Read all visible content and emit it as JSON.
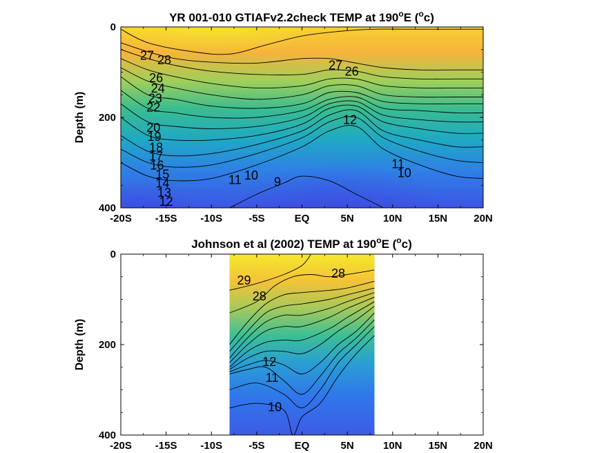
{
  "chart_data": [
    {
      "type": "heatmap",
      "title_prefix": "YR 001-010 GTIAFv2.2check TEMP at 190",
      "title_sup": "o",
      "title_mid": "E (",
      "title_sup2": "o",
      "title_suffix": "c)",
      "ylabel": "Depth (m)",
      "xlim": [
        -20,
        20
      ],
      "ylim": [
        0,
        400
      ],
      "y_reversed": true,
      "xticks": [
        -20,
        -15,
        -10,
        -5,
        0,
        5,
        10,
        15,
        20
      ],
      "xtick_labels": [
        "-20S",
        "-15S",
        "-10S",
        "-5S",
        "EQ",
        "5N",
        "10N",
        "15N",
        "20N"
      ],
      "yticks": [
        0,
        200,
        400
      ],
      "ytick_labels": [
        "0",
        "200",
        "400"
      ],
      "data_xrange": [
        -20,
        20
      ],
      "contours": [
        {
          "level": 28,
          "x": [
            -20,
            -17,
            -12,
            -8,
            -4,
            0,
            4,
            8,
            12,
            16,
            20
          ],
          "y": [
            5,
            35,
            55,
            60,
            40,
            20,
            10,
            5,
            5,
            5,
            5
          ]
        },
        {
          "level": 27,
          "x": [
            -20,
            -17,
            -14,
            -10,
            -5,
            0,
            3,
            6,
            9,
            13,
            17,
            20
          ],
          "y": [
            35,
            55,
            70,
            78,
            80,
            70,
            70,
            80,
            90,
            95,
            95,
            95
          ]
        },
        {
          "level": 26,
          "x": [
            -20,
            -17,
            -14,
            -10,
            -5,
            0,
            3,
            6,
            9,
            13,
            17,
            20
          ],
          "y": [
            50,
            70,
            85,
            98,
            105,
            105,
            95,
            98,
            110,
            115,
            115,
            115
          ]
        },
        {
          "level": 24,
          "x": [
            -20,
            -17,
            -14,
            -10,
            -5,
            0,
            3,
            6,
            9,
            13,
            17,
            20
          ],
          "y": [
            70,
            95,
            110,
            125,
            135,
            130,
            115,
            115,
            130,
            135,
            135,
            135
          ]
        },
        {
          "level": 22,
          "x": [
            -20,
            -17,
            -14,
            -10,
            -5,
            0,
            3,
            6,
            9,
            13,
            17,
            20
          ],
          "y": [
            90,
            120,
            135,
            150,
            160,
            150,
            130,
            130,
            150,
            155,
            155,
            155
          ]
        },
        {
          "level": 20,
          "x": [
            -20,
            -17,
            -14,
            -10,
            -5,
            0,
            3,
            6,
            9,
            13,
            17,
            20
          ],
          "y": [
            110,
            150,
            160,
            175,
            180,
            170,
            145,
            145,
            165,
            170,
            170,
            170
          ]
        },
        {
          "level": 18,
          "x": [
            -20,
            -17,
            -14,
            -10,
            -5,
            0,
            3,
            6,
            9,
            13,
            17,
            20
          ],
          "y": [
            140,
            180,
            190,
            200,
            200,
            185,
            160,
            155,
            180,
            185,
            190,
            190
          ]
        },
        {
          "level": 16,
          "x": [
            -20,
            -17,
            -14,
            -10,
            -5,
            0,
            3,
            6,
            9,
            13,
            17,
            20
          ],
          "y": [
            170,
            210,
            220,
            225,
            220,
            200,
            170,
            165,
            195,
            205,
            210,
            210
          ]
        },
        {
          "level": 14,
          "x": [
            -20,
            -17,
            -14,
            -10,
            -5,
            0,
            3,
            6,
            9,
            13,
            17,
            20
          ],
          "y": [
            200,
            240,
            250,
            250,
            240,
            215,
            180,
            175,
            210,
            225,
            235,
            235
          ]
        },
        {
          "level": 12,
          "x": [
            -20,
            -17,
            -14,
            -10,
            -5,
            0,
            3,
            6,
            9,
            13,
            17,
            20
          ],
          "y": [
            240,
            275,
            285,
            280,
            260,
            230,
            195,
            185,
            230,
            250,
            265,
            265
          ]
        },
        {
          "level": 11,
          "x": [
            -20,
            -17,
            -14,
            -10,
            -5,
            0,
            3,
            6,
            9,
            13,
            17,
            20
          ],
          "y": [
            270,
            300,
            310,
            305,
            280,
            245,
            210,
            200,
            245,
            275,
            295,
            300
          ]
        },
        {
          "level": 10,
          "x": [
            -20,
            -17,
            -14,
            -10,
            -5,
            0,
            3,
            6,
            9,
            13,
            17,
            20
          ],
          "y": [
            300,
            330,
            340,
            335,
            305,
            265,
            230,
            220,
            270,
            305,
            330,
            335
          ]
        },
        {
          "level": 9,
          "x": [
            -8,
            -5,
            -2,
            0,
            3,
            6,
            9
          ],
          "y": [
            400,
            370,
            345,
            330,
            340,
            370,
            400
          ]
        }
      ],
      "contour_labels": [
        {
          "text": "28",
          "x": -15.2,
          "y": 75
        },
        {
          "text": "27",
          "x": -17.1,
          "y": 65
        },
        {
          "text": "26",
          "x": -16.1,
          "y": 115
        },
        {
          "text": "24",
          "x": -15.9,
          "y": 138
        },
        {
          "text": "23",
          "x": -16.2,
          "y": 160
        },
        {
          "text": "22",
          "x": -16.4,
          "y": 180
        },
        {
          "text": "20",
          "x": -16.4,
          "y": 225
        },
        {
          "text": "19",
          "x": -16.3,
          "y": 245
        },
        {
          "text": "18",
          "x": -16.1,
          "y": 268
        },
        {
          "text": "17",
          "x": -16.1,
          "y": 288
        },
        {
          "text": "16",
          "x": -16.0,
          "y": 308
        },
        {
          "text": "15",
          "x": -15.4,
          "y": 328
        },
        {
          "text": "14",
          "x": -15.4,
          "y": 348
        },
        {
          "text": "13",
          "x": -15.2,
          "y": 368
        },
        {
          "text": "12",
          "x": -15.0,
          "y": 388
        },
        {
          "text": "11",
          "x": -7.4,
          "y": 340
        },
        {
          "text": "10",
          "x": -5.6,
          "y": 330
        },
        {
          "text": "9",
          "x": -2.7,
          "y": 345
        },
        {
          "text": "27",
          "x": 3.7,
          "y": 87
        },
        {
          "text": "26",
          "x": 5.5,
          "y": 100
        },
        {
          "text": "12",
          "x": 5.3,
          "y": 207
        },
        {
          "text": "11",
          "x": 10.6,
          "y": 305
        },
        {
          "text": "10",
          "x": 11.3,
          "y": 325
        }
      ]
    },
    {
      "type": "heatmap",
      "title_prefix": "Johnson et al (2002) TEMP at 190",
      "title_sup": "o",
      "title_mid": "E (",
      "title_sup2": "o",
      "title_suffix": "c)",
      "ylabel": "Depth (m)",
      "xlim": [
        -20,
        20
      ],
      "ylim": [
        0,
        400
      ],
      "y_reversed": true,
      "xticks": [
        -20,
        -15,
        -10,
        -5,
        0,
        5,
        10,
        15,
        20
      ],
      "xtick_labels": [
        "-20S",
        "-15S",
        "-10S",
        "-5S",
        "EQ",
        "5N",
        "10N",
        "15N",
        "20N"
      ],
      "yticks": [
        0,
        200,
        400
      ],
      "ytick_labels": [
        "0",
        "200",
        "400"
      ],
      "data_xrange": [
        -8,
        8
      ],
      "contours": [
        {
          "level": 29,
          "x": [
            -8,
            -5,
            -2,
            0,
            1
          ],
          "y": [
            80,
            65,
            45,
            25,
            0
          ]
        },
        {
          "level": 28,
          "x": [
            -8,
            -5,
            -3,
            -1,
            1,
            3,
            5,
            8
          ],
          "y": [
            130,
            105,
            70,
            50,
            45,
            50,
            45,
            35
          ]
        },
        {
          "level": 26,
          "x": [
            -8,
            -6,
            -4,
            -2,
            0,
            3,
            5,
            8
          ],
          "y": [
            200,
            150,
            110,
            90,
            85,
            80,
            75,
            60
          ]
        },
        {
          "level": 24,
          "x": [
            -8,
            -6,
            -4,
            -2,
            0,
            3,
            5,
            8
          ],
          "y": [
            215,
            170,
            130,
            115,
            110,
            100,
            90,
            75
          ]
        },
        {
          "level": 22,
          "x": [
            -8,
            -6,
            -4,
            -2,
            0,
            3,
            5,
            8
          ],
          "y": [
            230,
            185,
            150,
            135,
            135,
            120,
            105,
            85
          ]
        },
        {
          "level": 20,
          "x": [
            -8,
            -6,
            -4,
            -2,
            0,
            3,
            5,
            8
          ],
          "y": [
            240,
            200,
            170,
            160,
            160,
            140,
            120,
            95
          ]
        },
        {
          "level": 18,
          "x": [
            -8,
            -6,
            -4,
            -2,
            0,
            3,
            5,
            8
          ],
          "y": [
            250,
            215,
            195,
            190,
            190,
            165,
            140,
            105
          ]
        },
        {
          "level": 16,
          "x": [
            -8,
            -6,
            -4,
            -2,
            0,
            2,
            4,
            6,
            8
          ],
          "y": [
            255,
            230,
            215,
            215,
            220,
            200,
            170,
            145,
            115
          ]
        },
        {
          "level": 14,
          "x": [
            -8,
            -6,
            -4,
            -2,
            0,
            2,
            4,
            6,
            8
          ],
          "y": [
            260,
            245,
            235,
            245,
            265,
            240,
            200,
            170,
            130
          ]
        },
        {
          "level": 12,
          "x": [
            -8,
            -6,
            -4,
            -2,
            0,
            2,
            4,
            6,
            8
          ],
          "y": [
            265,
            255,
            250,
            280,
            310,
            270,
            220,
            185,
            145
          ]
        },
        {
          "level": 11,
          "x": [
            -8,
            -5,
            -2,
            0,
            2,
            4,
            6,
            8
          ],
          "y": [
            300,
            285,
            310,
            340,
            300,
            240,
            200,
            160
          ]
        },
        {
          "level": 10,
          "x": [
            -8,
            -5,
            -2,
            -1,
            0,
            2,
            4,
            6,
            8
          ],
          "y": [
            340,
            330,
            345,
            400,
            360,
            330,
            270,
            220,
            180
          ]
        }
      ],
      "contour_labels": [
        {
          "text": "29",
          "x": -6.4,
          "y": 60
        },
        {
          "text": "28",
          "x": -4.7,
          "y": 95
        },
        {
          "text": "28",
          "x": 4.0,
          "y": 45
        },
        {
          "text": "12",
          "x": -3.6,
          "y": 240
        },
        {
          "text": "11",
          "x": -3.3,
          "y": 275
        },
        {
          "text": "10",
          "x": -3.0,
          "y": 340
        }
      ]
    }
  ]
}
